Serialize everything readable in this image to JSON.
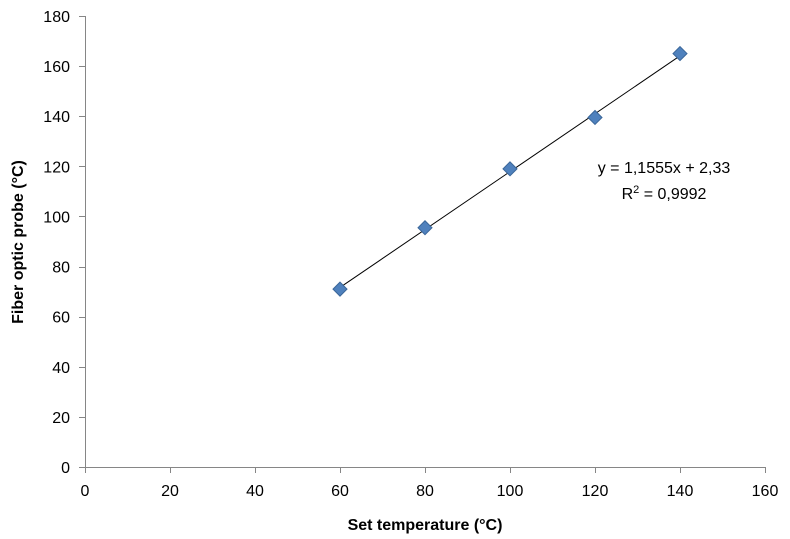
{
  "chart_data": {
    "type": "scatter",
    "title": "",
    "xlabel": "Set temperature (°C)",
    "ylabel": "Fiber optic probe (°C)",
    "xlim": [
      0,
      160
    ],
    "ylim": [
      0,
      180
    ],
    "xticks": [
      0,
      20,
      40,
      60,
      80,
      100,
      120,
      140,
      160
    ],
    "yticks": [
      0,
      20,
      40,
      60,
      80,
      100,
      120,
      140,
      160,
      180
    ],
    "grid": false,
    "legend": "none",
    "marker": "diamond",
    "marker_color": "#4F81BD",
    "series": [
      {
        "x": [
          60,
          80,
          100,
          120,
          140
        ],
        "y": [
          71,
          95.5,
          119,
          139.5,
          165
        ]
      }
    ],
    "trendline": {
      "type": "linear",
      "slope": 1.1555,
      "intercept": 2.33,
      "x_range": [
        60,
        140
      ],
      "color": "#000000"
    },
    "annotations": {
      "equation": "y = 1,1555x + 2,33",
      "r2_prefix": "R",
      "r2_sup": "2",
      "r2_value": " = 0,9992"
    }
  }
}
